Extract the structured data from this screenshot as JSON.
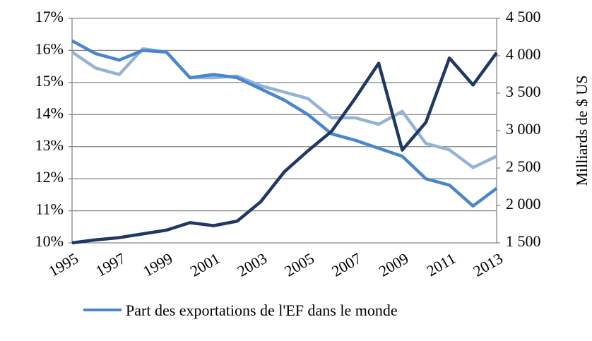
{
  "chart_data": {
    "type": "line",
    "categories": [
      "1995",
      null,
      "1997",
      null,
      "1999",
      null,
      "2001",
      null,
      "2003",
      null,
      "2005",
      null,
      "2007",
      null,
      "2009",
      null,
      "2011",
      null,
      "2013"
    ],
    "series": [
      {
        "name": "Part des exportations de l'EF dans le monde",
        "color": "#4a86cf",
        "values": [
          16.3,
          15.9,
          15.7,
          16.0,
          15.95,
          15.15,
          15.25,
          15.15,
          14.8,
          14.45,
          14.0,
          13.4,
          13.2,
          12.95,
          12.7,
          12.0,
          11.8,
          11.15,
          11.7
        ]
      },
      {
        "color": "#95b3d7",
        "values": [
          15.95,
          15.45,
          15.25,
          16.05,
          15.95,
          15.15,
          15.15,
          15.2,
          14.9,
          14.7,
          14.5,
          13.9,
          13.9,
          13.7,
          14.1,
          13.1,
          12.9,
          12.35,
          12.7
        ]
      },
      {
        "color": "#1f3864",
        "axis": "y2",
        "values": [
          1500,
          1540,
          1570,
          1620,
          1670,
          1770,
          1730,
          1790,
          2050,
          2450,
          2730,
          2990,
          3430,
          3900,
          2740,
          3110,
          3970,
          3610,
          4040
        ]
      }
    ],
    "ylim": [
      10,
      17
    ],
    "yticks": [
      {
        "value": 10,
        "label": "10%"
      },
      {
        "value": 11,
        "label": "11%"
      },
      {
        "value": 12,
        "label": "12%"
      },
      {
        "value": 13,
        "label": "13%"
      },
      {
        "value": 14,
        "label": "14%"
      },
      {
        "value": 15,
        "label": "15%"
      },
      {
        "value": 16,
        "label": "16%"
      },
      {
        "value": 17,
        "label": "17%"
      }
    ],
    "y2lim": [
      1500,
      4500
    ],
    "y2ticks": [
      {
        "value": 1500,
        "label": "1 500"
      },
      {
        "value": 2000,
        "label": "2 000"
      },
      {
        "value": 2500,
        "label": "2 500"
      },
      {
        "value": 3000,
        "label": "3 000"
      },
      {
        "value": 3500,
        "label": "3 500"
      },
      {
        "value": 4000,
        "label": "4 000"
      },
      {
        "value": 4500,
        "label": "4 500"
      }
    ],
    "y2label": "Milliards de $ US",
    "grid": true,
    "legend": "bottom"
  }
}
